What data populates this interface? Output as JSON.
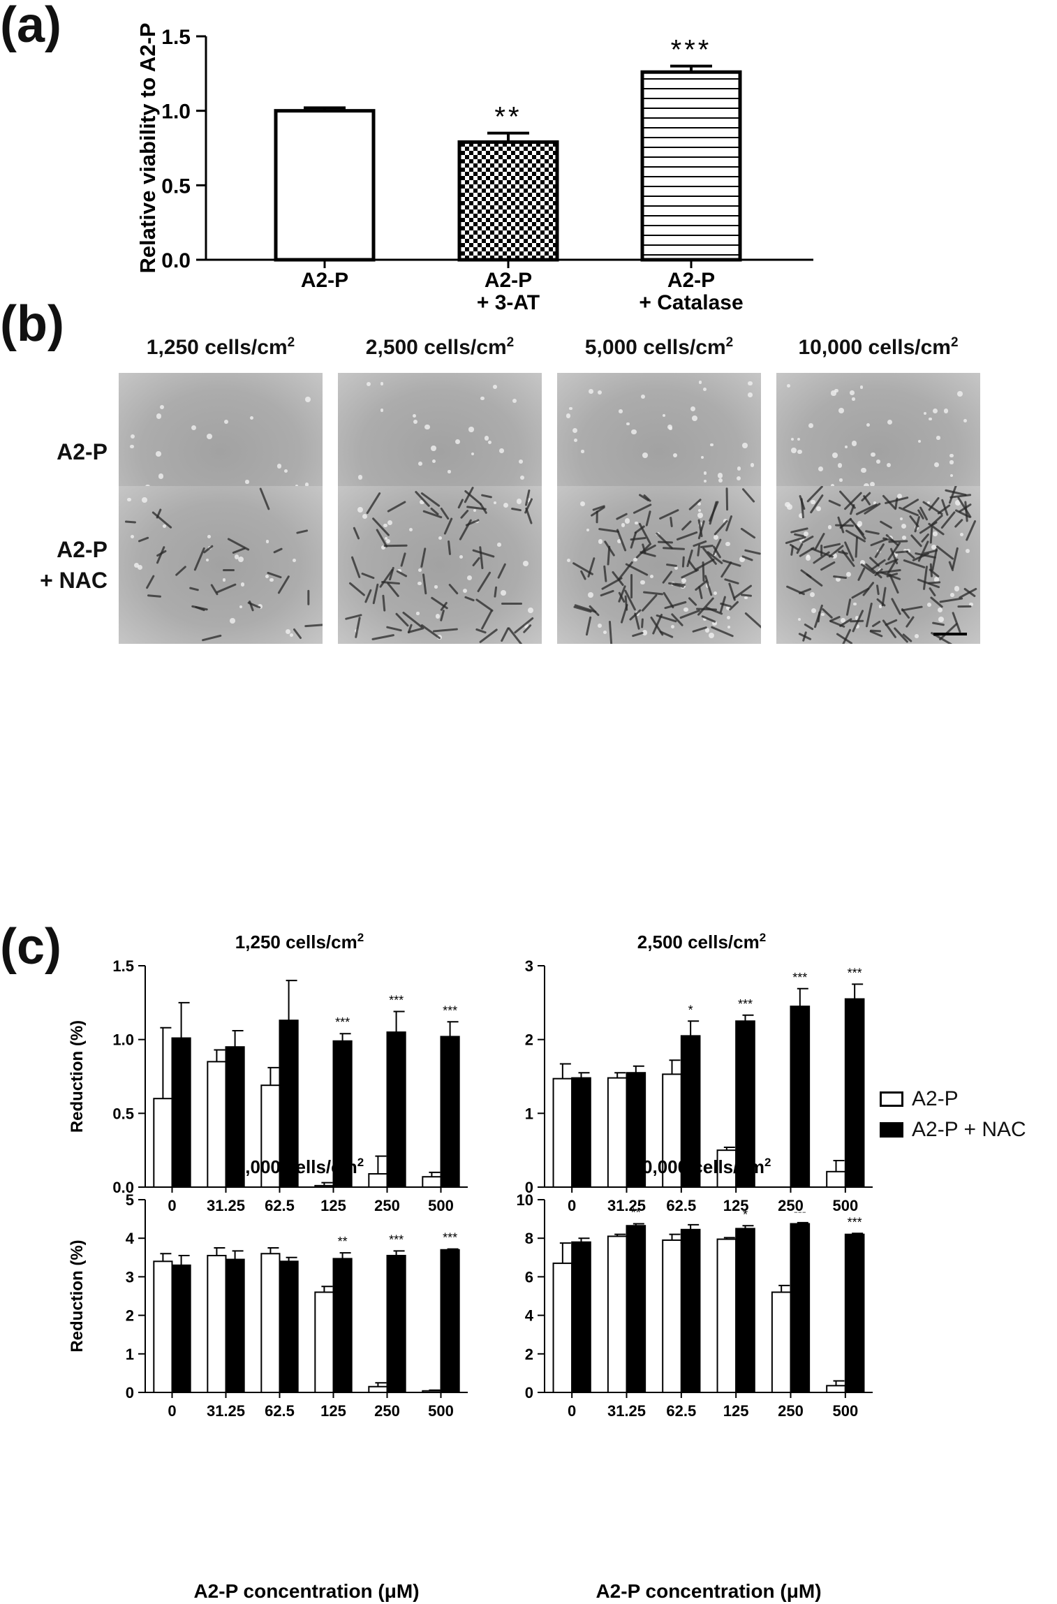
{
  "panels": {
    "a": "(a)",
    "b": "(b)",
    "c": "(c)"
  },
  "colors": {
    "ink": "#000000",
    "open_bar": "#ffffff",
    "nac_bar": "#000000"
  },
  "chart_data": [
    {
      "panel": "(a)",
      "type": "bar",
      "categories": [
        [
          "A2-P"
        ],
        [
          "A2-P",
          "+ 3-AT"
        ],
        [
          "A2-P",
          "+ Catalase"
        ]
      ],
      "values": [
        1.0,
        0.79,
        1.26
      ],
      "errors": [
        0.02,
        0.06,
        0.04
      ],
      "fills": [
        "open",
        "checker",
        "hlines"
      ],
      "significance": [
        "",
        "**",
        "***"
      ],
      "ylabel": "Relative viability to A2-P",
      "ylim": [
        0,
        1.5
      ],
      "yticks": [
        "0.0",
        "0.5",
        "1.0",
        "1.5"
      ],
      "grid": false
    },
    {
      "panel": "(c)",
      "type": "bar",
      "title": "1,250 cells/cm",
      "title_sup": "2",
      "categories": [
        "0",
        "31.25",
        "62.5",
        "125",
        "250",
        "500"
      ],
      "series": [
        {
          "name": "A2-P",
          "values": [
            0.6,
            0.85,
            0.69,
            0.01,
            0.09,
            0.07
          ],
          "errors": [
            0.48,
            0.08,
            0.12,
            0.02,
            0.12,
            0.03
          ]
        },
        {
          "name": "A2-P + NAC",
          "values": [
            1.01,
            0.95,
            1.13,
            0.99,
            1.05,
            1.02
          ],
          "errors": [
            0.24,
            0.11,
            0.27,
            0.05,
            0.14,
            0.1
          ]
        }
      ],
      "significance": [
        "",
        "",
        "",
        "***",
        "***",
        "***"
      ],
      "ylabel": "Reduction (%)",
      "xlabel": "",
      "ylim": [
        0,
        1.5
      ],
      "yticks": [
        "0.0",
        "0.5",
        "1.0",
        "1.5"
      ]
    },
    {
      "panel": "(c)",
      "type": "bar",
      "title": "2,500 cells/cm",
      "title_sup": "2",
      "categories": [
        "0",
        "31.25",
        "62.5",
        "125",
        "250",
        "500"
      ],
      "series": [
        {
          "name": "A2-P",
          "values": [
            1.47,
            1.48,
            1.53,
            0.5,
            0.0,
            0.21
          ],
          "errors": [
            0.2,
            0.07,
            0.19,
            0.04,
            0.0,
            0.15
          ]
        },
        {
          "name": "A2-P + NAC",
          "values": [
            1.48,
            1.55,
            2.05,
            2.25,
            2.45,
            2.55
          ],
          "errors": [
            0.07,
            0.09,
            0.2,
            0.08,
            0.24,
            0.2
          ]
        }
      ],
      "significance": [
        "",
        "",
        "*",
        "***",
        "***",
        "***"
      ],
      "ylabel": "",
      "xlabel": "",
      "ylim": [
        0,
        3
      ],
      "yticks": [
        "0",
        "1",
        "2",
        "3"
      ]
    },
    {
      "panel": "(c)",
      "type": "bar",
      "title": "5,000 cells/cm",
      "title_sup": "2",
      "categories": [
        "0",
        "31.25",
        "62.5",
        "125",
        "250",
        "500"
      ],
      "series": [
        {
          "name": "A2-P",
          "values": [
            3.4,
            3.55,
            3.6,
            2.6,
            0.15,
            0.04
          ],
          "errors": [
            0.2,
            0.2,
            0.15,
            0.15,
            0.1,
            0.02
          ]
        },
        {
          "name": "A2-P + NAC",
          "values": [
            3.3,
            3.45,
            3.4,
            3.47,
            3.55,
            3.7
          ],
          "errors": [
            0.25,
            0.22,
            0.1,
            0.15,
            0.12,
            0.02
          ]
        }
      ],
      "significance": [
        "",
        "",
        "",
        "**",
        "***",
        "***"
      ],
      "ylabel": "Reduction (%)",
      "xlabel": "A2-P concentration (μM)",
      "ylim": [
        0,
        5
      ],
      "yticks": [
        "0",
        "1",
        "2",
        "3",
        "4",
        "5"
      ]
    },
    {
      "panel": "(c)",
      "type": "bar",
      "title": "10,000 cells/cm",
      "title_sup": "2",
      "categories": [
        "0",
        "31.25",
        "62.5",
        "125",
        "250",
        "500"
      ],
      "series": [
        {
          "name": "A2-P",
          "values": [
            6.7,
            8.1,
            7.9,
            7.95,
            5.2,
            0.35
          ],
          "errors": [
            1.05,
            0.1,
            0.3,
            0.08,
            0.35,
            0.25
          ]
        },
        {
          "name": "A2-P + NAC",
          "values": [
            7.8,
            8.65,
            8.45,
            8.5,
            8.75,
            8.2
          ],
          "errors": [
            0.2,
            0.1,
            0.25,
            0.15,
            0.06,
            0.05
          ]
        }
      ],
      "significance": [
        "",
        "**",
        "",
        "*",
        "---",
        "***"
      ],
      "ylabel": "",
      "xlabel": "A2-P concentration (μM)",
      "ylim": [
        0,
        10
      ],
      "yticks": [
        "0",
        "2",
        "4",
        "6",
        "8",
        "10"
      ]
    }
  ],
  "microscopy": {
    "columns": [
      {
        "label": "1,250 cells/cm",
        "sup": "2"
      },
      {
        "label": "2,500 cells/cm",
        "sup": "2"
      },
      {
        "label": "5,000 cells/cm",
        "sup": "2"
      },
      {
        "label": "10,000 cells/cm",
        "sup": "2"
      }
    ],
    "rows": [
      {
        "lines": [
          "A2-P"
        ]
      },
      {
        "lines": [
          "A2-P",
          "+ NAC"
        ]
      }
    ]
  },
  "legend": {
    "items": [
      {
        "label": "A2-P",
        "fill": "#ffffff"
      },
      {
        "label": "A2-P + NAC",
        "fill": "#000000"
      }
    ],
    "placement": "right"
  }
}
